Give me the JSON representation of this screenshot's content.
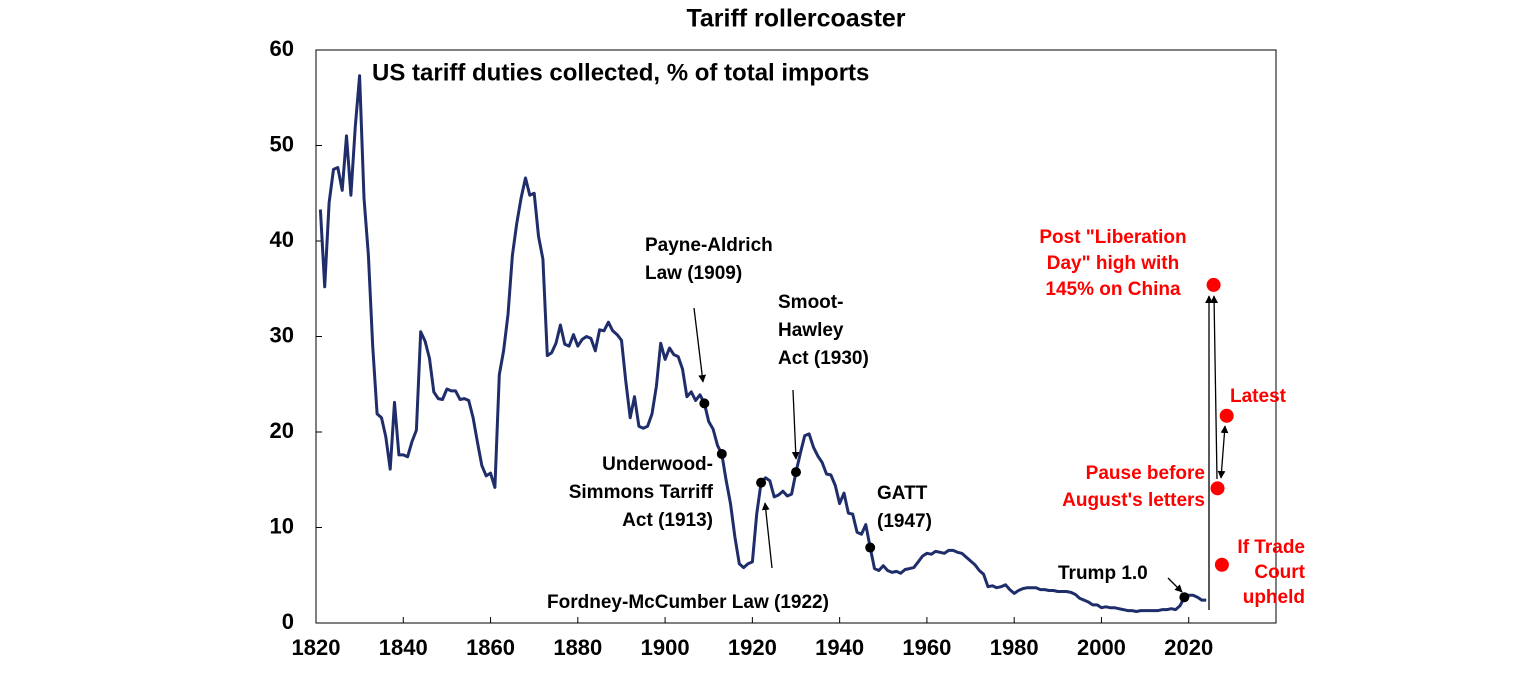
{
  "chart_data": {
    "type": "line",
    "title": "Tariff rollercoaster",
    "subtitle": "US tariff duties collected, % of total imports",
    "xlim": [
      1820,
      2040
    ],
    "xticks": [
      1820,
      1840,
      1860,
      1880,
      1900,
      1920,
      1940,
      1960,
      1980,
      2000,
      2020
    ],
    "ylim": [
      0,
      60
    ],
    "yticks": [
      0,
      10,
      20,
      30,
      40,
      50,
      60
    ],
    "series": [
      {
        "color": "#1f2d6b",
        "x": [
          1821,
          1822,
          1823,
          1824,
          1825,
          1826,
          1827,
          1828,
          1829,
          1830,
          1831,
          1832,
          1833,
          1834,
          1835,
          1836,
          1837,
          1838,
          1839,
          1840,
          1841,
          1842,
          1843,
          1844,
          1845,
          1846,
          1847,
          1848,
          1849,
          1850,
          1851,
          1852,
          1853,
          1854,
          1855,
          1856,
          1857,
          1858,
          1859,
          1860,
          1861,
          1862,
          1863,
          1864,
          1865,
          1866,
          1867,
          1868,
          1869,
          1870,
          1871,
          1872,
          1873,
          1874,
          1875,
          1876,
          1877,
          1878,
          1879,
          1880,
          1881,
          1882,
          1883,
          1884,
          1885,
          1886,
          1887,
          1888,
          1889,
          1890,
          1891,
          1892,
          1893,
          1894,
          1895,
          1896,
          1897,
          1898,
          1899,
          1900,
          1901,
          1902,
          1903,
          1904,
          1905,
          1906,
          1907,
          1908,
          1909,
          1910,
          1911,
          1912,
          1913,
          1914,
          1915,
          1916,
          1917,
          1918,
          1919,
          1920,
          1921,
          1922,
          1923,
          1924,
          1925,
          1926,
          1927,
          1928,
          1929,
          1930,
          1931,
          1932,
          1933,
          1934,
          1935,
          1936,
          1937,
          1938,
          1939,
          1940,
          1941,
          1942,
          1943,
          1944,
          1945,
          1946,
          1947,
          1948,
          1949,
          1950,
          1951,
          1952,
          1953,
          1954,
          1955,
          1956,
          1957,
          1958,
          1959,
          1960,
          1961,
          1962,
          1963,
          1964,
          1965,
          1966,
          1967,
          1968,
          1969,
          1970,
          1971,
          1972,
          1973,
          1974,
          1975,
          1976,
          1977,
          1978,
          1979,
          1980,
          1981,
          1982,
          1983,
          1984,
          1985,
          1986,
          1987,
          1988,
          1989,
          1990,
          1991,
          1992,
          1993,
          1994,
          1995,
          1996,
          1997,
          1998,
          1999,
          2000,
          2001,
          2002,
          2003,
          2004,
          2005,
          2006,
          2007,
          2008,
          2009,
          2010,
          2011,
          2012,
          2013,
          2014,
          2015,
          2016,
          2017,
          2018,
          2019,
          2020,
          2021,
          2022,
          2023,
          2024
        ],
        "values": [
          43.3,
          35.2,
          44,
          47.5,
          47.7,
          45.3,
          51,
          44.8,
          52,
          57.3,
          44.5,
          38.5,
          29,
          21.9,
          21.5,
          19.5,
          16.1,
          23.1,
          17.6,
          17.6,
          17.4,
          19,
          20.2,
          30.5,
          29.5,
          27.7,
          24.2,
          23.5,
          23.4,
          24.5,
          24.3,
          24.3,
          23.4,
          23.5,
          23.3,
          21.5,
          18.9,
          16.5,
          15.4,
          15.7,
          14.2,
          26,
          28.5,
          32.3,
          38.5,
          41.8,
          44.5,
          46.6,
          44.8,
          45,
          40.5,
          38.1,
          28,
          28.3,
          29.3,
          31.2,
          29.2,
          29,
          30.2,
          29,
          29.7,
          30,
          29.8,
          28.5,
          30.7,
          30.6,
          31.5,
          30.6,
          30.2,
          29.6,
          25.3,
          21.5,
          23.7,
          20.6,
          20.4,
          20.6,
          21.9,
          24.8,
          29.3,
          27.6,
          28.8,
          28.1,
          27.9,
          26.6,
          23.7,
          24.2,
          23.3,
          23.9,
          23.0,
          21.1,
          20.3,
          18.6,
          17.7,
          14.9,
          12.5,
          9,
          6.2,
          5.8,
          6.2,
          6.4,
          11.4,
          14.7,
          15.2,
          14.9,
          13.2,
          13.4,
          13.8,
          13.3,
          13.5,
          15.8,
          17.8,
          19.6,
          19.8,
          18.4,
          17.5,
          16.8,
          15.6,
          15.5,
          14.4,
          12.5,
          13.6,
          11.5,
          11.4,
          9.5,
          9.3,
          10.3,
          7.9,
          5.7,
          5.5,
          6,
          5.5,
          5.3,
          5.4,
          5.2,
          5.6,
          5.7,
          5.8,
          6.4,
          7.0,
          7.3,
          7.2,
          7.5,
          7.4,
          7.3,
          7.6,
          7.6,
          7.4,
          7.3,
          6.9,
          6.5,
          6.1,
          5.5,
          5.1,
          3.8,
          3.9,
          3.7,
          3.8,
          4,
          3.5,
          3.1,
          3.4,
          3.6,
          3.7,
          3.7,
          3.7,
          3.5,
          3.5,
          3.4,
          3.4,
          3.3,
          3.3,
          3.3,
          3.2,
          3.0,
          2.6,
          2.4,
          2.2,
          1.9,
          1.9,
          1.6,
          1.7,
          1.6,
          1.6,
          1.5,
          1.4,
          1.3,
          1.3,
          1.2,
          1.3,
          1.3,
          1.3,
          1.3,
          1.3,
          1.4,
          1.4,
          1.5,
          1.4,
          1.8,
          2.7,
          2.9,
          2.9,
          2.7,
          2.4,
          2.4
        ]
      }
    ],
    "annotations": [
      {
        "label": [
          "Payne-Aldrich",
          "Law (1909)"
        ],
        "x": 1909,
        "y": 23.0,
        "color": "#000000"
      },
      {
        "label": [
          "Underwood-",
          "Simmons Tarriff",
          "Act (1913)"
        ],
        "x": 1913,
        "y": 17.7,
        "color": "#000000"
      },
      {
        "label": [
          "Fordney-McCumber Law (1922)"
        ],
        "x": 1922,
        "y": 14.7,
        "color": "#000000"
      },
      {
        "label": [
          "Smoot-",
          "Hawley",
          "Act (1930)"
        ],
        "x": 1930,
        "y": 15.8,
        "color": "#000000"
      },
      {
        "label": [
          "GATT",
          "(1947)"
        ],
        "x": 1947,
        "y": 7.9,
        "color": "#000000"
      },
      {
        "label": [
          "Trump 1.0"
        ],
        "x": 2019,
        "y": 2.7,
        "color": "#000000"
      },
      {
        "label": [
          "Post \"Liberation",
          "Day\" high with",
          "145% on China"
        ],
        "x": 2025.7,
        "y": 35.4,
        "color": "#ff0000"
      },
      {
        "label": [
          "Pause before",
          "August's letters"
        ],
        "x": 2026.6,
        "y": 14.1,
        "color": "#ff0000"
      },
      {
        "label": [
          "Latest"
        ],
        "x": 2028.7,
        "y": 21.7,
        "color": "#ff0000"
      },
      {
        "label": [
          "If Trade",
          "Court",
          "upheld"
        ],
        "x": 2027.6,
        "y": 6.1,
        "color": "#ff0000"
      }
    ]
  }
}
